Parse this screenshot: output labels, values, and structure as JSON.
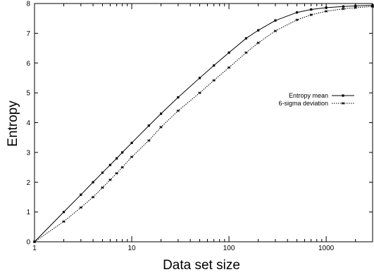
{
  "chart_data": {
    "type": "line",
    "title": "",
    "xlabel": "Data set size",
    "ylabel": "Entropy",
    "xscale": "log",
    "xlim": [
      1,
      3000
    ],
    "ylim": [
      0,
      8
    ],
    "x_ticks": [
      1,
      10,
      100,
      1000
    ],
    "x_tick_labels": [
      "1",
      "10",
      "100",
      "1000"
    ],
    "y_ticks": [
      0,
      1,
      2,
      3,
      4,
      5,
      6,
      7,
      8
    ],
    "y_tick_labels": [
      "0",
      "1",
      "2",
      "3",
      "4",
      "5",
      "6",
      "7",
      "8"
    ],
    "grid": false,
    "legend_position": "right",
    "x": [
      1,
      2,
      3,
      4,
      5,
      6,
      7,
      8,
      10,
      15,
      20,
      30,
      50,
      70,
      100,
      150,
      200,
      300,
      500,
      700,
      1000,
      1500,
      2000,
      3000
    ],
    "series": [
      {
        "name": "Entropy mean",
        "style": "solid",
        "marker": "square",
        "values": [
          0,
          1.0,
          1.58,
          2.0,
          2.32,
          2.58,
          2.8,
          3.0,
          3.32,
          3.9,
          4.3,
          4.85,
          5.5,
          5.92,
          6.35,
          6.83,
          7.1,
          7.43,
          7.7,
          7.8,
          7.86,
          7.9,
          7.92,
          7.94
        ]
      },
      {
        "name": "6-sigma deviation",
        "style": "dotted",
        "marker": "star",
        "values": [
          0,
          0.68,
          1.15,
          1.5,
          1.82,
          2.08,
          2.3,
          2.5,
          2.85,
          3.4,
          3.85,
          4.4,
          5.0,
          5.42,
          5.85,
          6.35,
          6.68,
          7.08,
          7.45,
          7.62,
          7.74,
          7.82,
          7.86,
          7.9
        ]
      }
    ]
  },
  "colors": {
    "line": "#000000",
    "background": "#ffffff"
  }
}
